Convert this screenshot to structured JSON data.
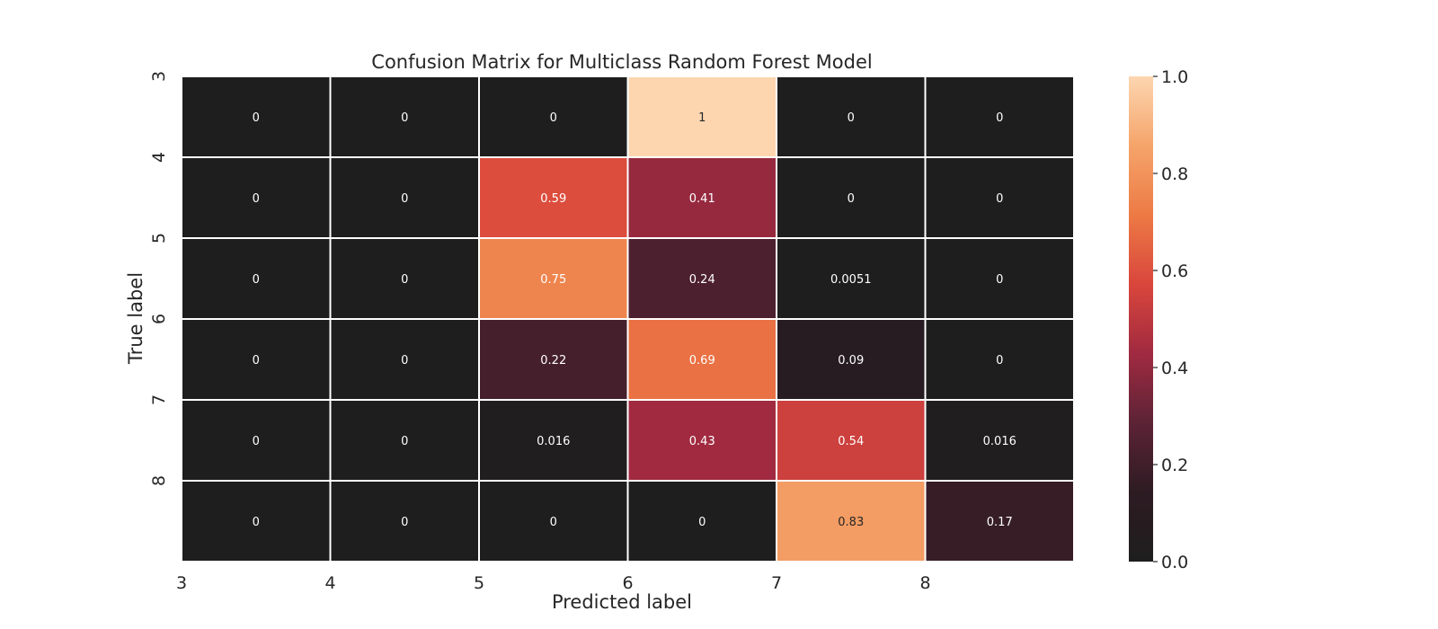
{
  "chart_data": {
    "type": "heatmap",
    "title": "Confusion Matrix for Multiclass Random Forest Model",
    "xlabel": "Predicted label",
    "ylabel": "True label",
    "x_tick_labels": [
      "3",
      "4",
      "5",
      "6",
      "7",
      "8"
    ],
    "y_tick_labels": [
      "3",
      "4",
      "5",
      "6",
      "7",
      "8"
    ],
    "values": [
      [
        0,
        0,
        0,
        1,
        0,
        0
      ],
      [
        0,
        0,
        0.59,
        0.41,
        0,
        0
      ],
      [
        0,
        0,
        0.75,
        0.24,
        0.0051,
        0
      ],
      [
        0,
        0,
        0.22,
        0.69,
        0.09,
        0
      ],
      [
        0,
        0,
        0.016,
        0.43,
        0.54,
        0.016
      ],
      [
        0,
        0,
        0,
        0,
        0.83,
        0.17
      ]
    ],
    "annotations": [
      [
        "0",
        "0",
        "0",
        "1",
        "0",
        "0"
      ],
      [
        "0",
        "0",
        "0.59",
        "0.41",
        "0",
        "0"
      ],
      [
        "0",
        "0",
        "0.75",
        "0.24",
        "0.0051",
        "0"
      ],
      [
        "0",
        "0",
        "0.22",
        "0.69",
        "0.09",
        "0"
      ],
      [
        "0",
        "0",
        "0.016",
        "0.43",
        "0.54",
        "0.016"
      ],
      [
        "0",
        "0",
        "0",
        "0",
        "0.83",
        "0.17"
      ]
    ],
    "colorbar": {
      "min": 0,
      "max": 1,
      "ticks": [
        "0.0",
        "0.2",
        "0.4",
        "0.6",
        "0.8",
        "1.0"
      ],
      "colormap": "rocket",
      "colors": [
        "#1e1e1e",
        "#2d1b22",
        "#5c2336",
        "#a02a40",
        "#d9463c",
        "#ed7a45",
        "#f5a46a",
        "#fdd6b0"
      ]
    }
  }
}
